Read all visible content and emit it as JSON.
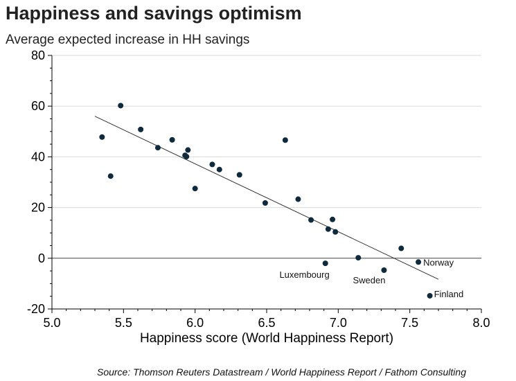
{
  "chart_data": {
    "type": "scatter",
    "title": "Happiness and savings optimism",
    "subtitle": "Average expected increase in HH savings",
    "xlabel": "Happiness score (World Happiness Report)",
    "ylabel": "",
    "xlim": [
      5.0,
      8.0
    ],
    "ylim": [
      -20,
      80
    ],
    "x_ticks": [
      5.0,
      5.5,
      6.0,
      6.5,
      7.0,
      7.5,
      8.0
    ],
    "x_tick_labels": [
      "5.0",
      "5.5",
      "6.0",
      "6.5",
      "7.0",
      "7.5",
      "8.0"
    ],
    "y_ticks": [
      -20,
      0,
      20,
      40,
      60,
      80
    ],
    "y_tick_labels": [
      "-20",
      "0",
      "20",
      "40",
      "60",
      "80"
    ],
    "grid": "horizontal",
    "zero_line": true,
    "points": [
      {
        "x": 5.35,
        "y": 47.8
      },
      {
        "x": 5.41,
        "y": 32.4
      },
      {
        "x": 5.48,
        "y": 60.2
      },
      {
        "x": 5.62,
        "y": 50.8
      },
      {
        "x": 5.74,
        "y": 43.6
      },
      {
        "x": 5.84,
        "y": 46.7
      },
      {
        "x": 5.93,
        "y": 40.6
      },
      {
        "x": 5.94,
        "y": 40.1
      },
      {
        "x": 5.95,
        "y": 42.7
      },
      {
        "x": 6.0,
        "y": 27.5
      },
      {
        "x": 6.12,
        "y": 37.0
      },
      {
        "x": 6.17,
        "y": 35.0
      },
      {
        "x": 6.31,
        "y": 32.9
      },
      {
        "x": 6.49,
        "y": 21.8
      },
      {
        "x": 6.63,
        "y": 46.6
      },
      {
        "x": 6.72,
        "y": 23.3
      },
      {
        "x": 6.81,
        "y": 15.1
      },
      {
        "x": 6.93,
        "y": 11.5
      },
      {
        "x": 6.96,
        "y": 15.3
      },
      {
        "x": 6.98,
        "y": 10.4
      },
      {
        "x": 7.14,
        "y": 0.2
      },
      {
        "x": 7.44,
        "y": 3.9
      },
      {
        "x": 6.91,
        "y": -2.0,
        "label": "Luxembourg"
      },
      {
        "x": 7.32,
        "y": -4.7,
        "label": "Sweden"
      },
      {
        "x": 7.56,
        "y": -1.5,
        "label": "Norway"
      },
      {
        "x": 7.64,
        "y": -14.8,
        "label": "Finland"
      }
    ],
    "trendline": {
      "x": [
        5.3,
        7.7
      ],
      "y": [
        56.0,
        -8.3
      ]
    },
    "colors": {
      "point": "#0f2a3d",
      "trendline": "#333333",
      "grid": "#d9d9d9",
      "axis": "#000000"
    }
  },
  "source": "Source: Thomson Reuters Datastream / World Happiness Report / Fathom Consulting"
}
